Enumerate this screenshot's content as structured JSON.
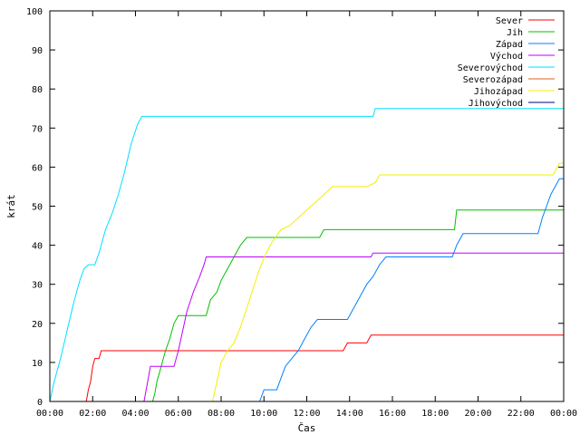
{
  "chart_data": {
    "type": "line",
    "xlabel": "Čas",
    "ylabel": "krát",
    "xlim": [
      0,
      24
    ],
    "ylim": [
      0,
      100
    ],
    "yticks": [
      0,
      10,
      20,
      30,
      40,
      50,
      60,
      70,
      80,
      90,
      100
    ],
    "xticks": [
      {
        "value": 0,
        "label": "00:00"
      },
      {
        "value": 2,
        "label": "02:00"
      },
      {
        "value": 4,
        "label": "04:00"
      },
      {
        "value": 6,
        "label": "06:00"
      },
      {
        "value": 8,
        "label": "08:00"
      },
      {
        "value": 10,
        "label": "10:00"
      },
      {
        "value": 12,
        "label": "12:00"
      },
      {
        "value": 14,
        "label": "14:00"
      },
      {
        "value": 16,
        "label": "16:00"
      },
      {
        "value": 18,
        "label": "18:00"
      },
      {
        "value": 20,
        "label": "20:00"
      },
      {
        "value": 22,
        "label": "22:00"
      },
      {
        "value": 24,
        "label": "00:00"
      }
    ],
    "grid": false,
    "legend_position": "top-right",
    "series": [
      {
        "name": "Sever",
        "color": "#ff0000",
        "points": [
          [
            0,
            0
          ],
          [
            1.7,
            0
          ],
          [
            1.8,
            3
          ],
          [
            1.9,
            5
          ],
          [
            2.0,
            9
          ],
          [
            2.1,
            11
          ],
          [
            2.3,
            11
          ],
          [
            2.4,
            13
          ],
          [
            13.7,
            13
          ],
          [
            13.9,
            15
          ],
          [
            14.8,
            15
          ],
          [
            15.0,
            17
          ],
          [
            24,
            17
          ]
        ]
      },
      {
        "name": "Jih",
        "color": "#00c000",
        "points": [
          [
            0,
            0
          ],
          [
            4.8,
            0
          ],
          [
            4.9,
            2
          ],
          [
            5.0,
            5
          ],
          [
            5.2,
            9
          ],
          [
            5.4,
            13
          ],
          [
            5.6,
            16
          ],
          [
            5.8,
            20
          ],
          [
            6.0,
            22
          ],
          [
            7.3,
            22
          ],
          [
            7.5,
            26
          ],
          [
            7.8,
            28
          ],
          [
            8.0,
            31
          ],
          [
            8.3,
            34
          ],
          [
            8.6,
            37
          ],
          [
            8.9,
            40
          ],
          [
            9.2,
            42
          ],
          [
            12.6,
            42
          ],
          [
            12.8,
            44
          ],
          [
            18.9,
            44
          ],
          [
            19.0,
            49
          ],
          [
            24,
            49
          ]
        ]
      },
      {
        "name": "Západ",
        "color": "#0080ff",
        "points": [
          [
            0,
            0
          ],
          [
            9.8,
            0
          ],
          [
            10.0,
            3
          ],
          [
            10.6,
            3
          ],
          [
            10.8,
            6
          ],
          [
            11.0,
            9
          ],
          [
            11.3,
            11
          ],
          [
            11.6,
            13
          ],
          [
            11.9,
            16
          ],
          [
            12.2,
            19
          ],
          [
            12.5,
            21
          ],
          [
            13.9,
            21
          ],
          [
            14.2,
            24
          ],
          [
            14.5,
            27
          ],
          [
            14.8,
            30
          ],
          [
            15.1,
            32
          ],
          [
            15.4,
            35
          ],
          [
            15.7,
            37
          ],
          [
            18.8,
            37
          ],
          [
            19.0,
            40
          ],
          [
            19.3,
            43
          ],
          [
            22.8,
            43
          ],
          [
            23.0,
            47
          ],
          [
            23.2,
            50
          ],
          [
            23.4,
            53
          ],
          [
            23.6,
            55
          ],
          [
            23.8,
            57
          ],
          [
            24,
            57
          ]
        ]
      },
      {
        "name": "Východ",
        "color": "#c000ff",
        "points": [
          [
            0,
            0
          ],
          [
            4.4,
            0
          ],
          [
            4.5,
            3
          ],
          [
            4.6,
            6
          ],
          [
            4.7,
            9
          ],
          [
            5.8,
            9
          ],
          [
            6.0,
            13
          ],
          [
            6.2,
            18
          ],
          [
            6.4,
            23
          ],
          [
            6.7,
            28
          ],
          [
            7.0,
            32
          ],
          [
            7.2,
            35
          ],
          [
            7.3,
            37
          ],
          [
            15.0,
            37
          ],
          [
            15.1,
            38
          ],
          [
            24,
            38
          ]
        ]
      },
      {
        "name": "Severovýchod",
        "color": "#00e0ff",
        "points": [
          [
            0,
            0
          ],
          [
            0.2,
            5
          ],
          [
            0.5,
            11
          ],
          [
            0.8,
            18
          ],
          [
            1.1,
            25
          ],
          [
            1.4,
            31
          ],
          [
            1.6,
            34
          ],
          [
            1.8,
            35
          ],
          [
            2.1,
            35
          ],
          [
            2.3,
            38
          ],
          [
            2.6,
            44
          ],
          [
            2.9,
            48
          ],
          [
            3.2,
            53
          ],
          [
            3.5,
            59
          ],
          [
            3.8,
            66
          ],
          [
            4.1,
            71
          ],
          [
            4.3,
            73
          ],
          [
            15.1,
            73
          ],
          [
            15.2,
            75
          ],
          [
            24,
            75
          ]
        ]
      },
      {
        "name": "Severozápad",
        "color": "#e0601a",
        "points": []
      },
      {
        "name": "Jihozápad",
        "color": "#f0f000",
        "points": [
          [
            0,
            0
          ],
          [
            7.6,
            0
          ],
          [
            7.8,
            5
          ],
          [
            8.0,
            10
          ],
          [
            8.3,
            13
          ],
          [
            8.6,
            15
          ],
          [
            8.9,
            19
          ],
          [
            9.2,
            24
          ],
          [
            9.5,
            29
          ],
          [
            9.8,
            34
          ],
          [
            10.1,
            38
          ],
          [
            10.4,
            41
          ],
          [
            10.8,
            44
          ],
          [
            11.2,
            45
          ],
          [
            11.6,
            47
          ],
          [
            12.0,
            49
          ],
          [
            12.4,
            51
          ],
          [
            12.8,
            53
          ],
          [
            13.2,
            55
          ],
          [
            14.8,
            55
          ],
          [
            15.2,
            56
          ],
          [
            15.4,
            58
          ],
          [
            23.5,
            58
          ],
          [
            23.7,
            60
          ],
          [
            23.8,
            61
          ],
          [
            24,
            61
          ]
        ]
      },
      {
        "name": "Jihovýchod",
        "color": "#000080",
        "points": []
      }
    ]
  }
}
